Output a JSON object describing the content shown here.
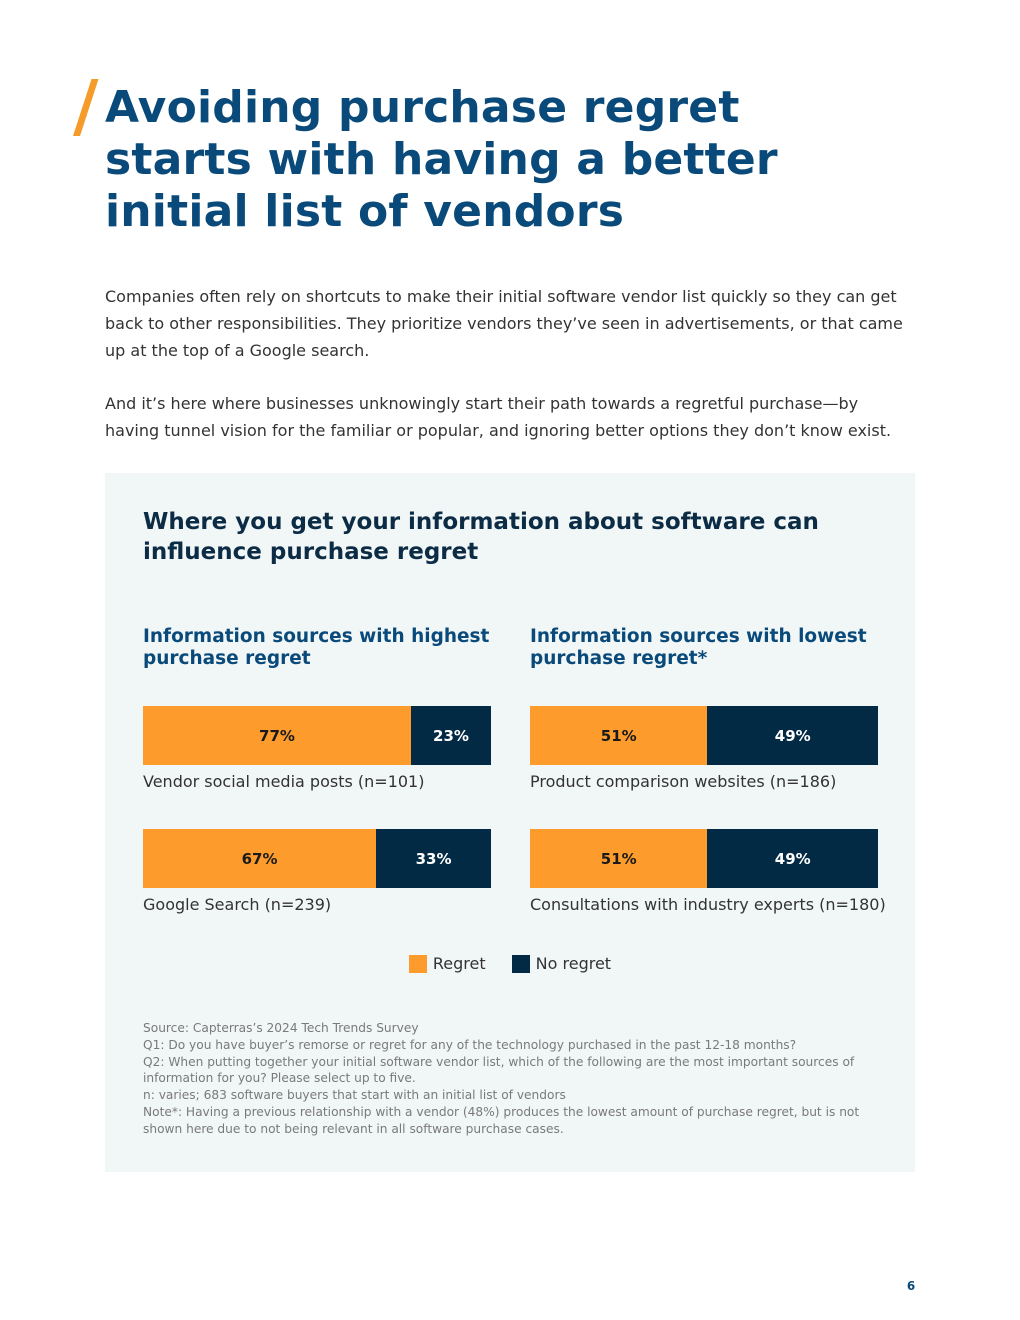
{
  "title_lines": [
    "Avoiding purchase regret",
    "starts with having a better",
    "initial list of vendors"
  ],
  "paragraphs": [
    "Companies often rely on shortcuts to make their initial software vendor list quickly so they can get back to other responsibilities. They prioritize vendors they’ve seen in advertisements, or that came up at the top of a Google search.",
    "And it’s here where businesses unknowingly start their path towards a regretful purchase—by having tunnel vision for the familiar or popular, and ignoring better options they don’t know exist."
  ],
  "panel": {
    "title_lines": [
      "Where you get your information about software can",
      "influence purchase regret"
    ],
    "legend": {
      "regret": "Regret",
      "no_regret": "No regret"
    },
    "notes": [
      "Source: Capterras’s 2024 Tech Trends Survey",
      "Q1: Do you have buyer’s remorse or regret for any of the technology purchased in the past 12-18 months?",
      "Q2: When putting together your initial software vendor list, which of the following are the most important sources of information for you? Please select up to five.",
      "n: varies; 683 software buyers that start with an initial list of vendors",
      "Note*: Having a previous relationship with a vendor (48%) produces the lowest amount of purchase regret, but is not shown here due to not being relevant in all software purchase cases."
    ]
  },
  "chart_data": [
    {
      "type": "bar",
      "stacked": true,
      "orientation": "horizontal",
      "title_lines": [
        "Information sources with highest",
        "purchase regret"
      ],
      "categories": [
        "Vendor social media posts (n=101)",
        "Google Search (n=239)"
      ],
      "series": [
        {
          "name": "Regret",
          "values": [
            77,
            67
          ],
          "labels": [
            "77%",
            "67%"
          ]
        },
        {
          "name": "No regret",
          "values": [
            23,
            33
          ],
          "labels": [
            "23%",
            "33%"
          ]
        }
      ]
    },
    {
      "type": "bar",
      "stacked": true,
      "orientation": "horizontal",
      "title_lines": [
        "Information sources with lowest",
        "purchase regret*"
      ],
      "categories": [
        "Product comparison websites (n=186)",
        "Consultations with industry experts (n=180)"
      ],
      "series": [
        {
          "name": "Regret",
          "values": [
            51,
            51
          ],
          "labels": [
            "51%",
            "51%"
          ]
        },
        {
          "name": "No regret",
          "values": [
            49,
            49
          ],
          "labels": [
            "49%",
            "49%"
          ]
        }
      ]
    }
  ],
  "colors": {
    "regret": "#fd9c2d",
    "no_regret": "#032a45"
  },
  "page_number": "6"
}
